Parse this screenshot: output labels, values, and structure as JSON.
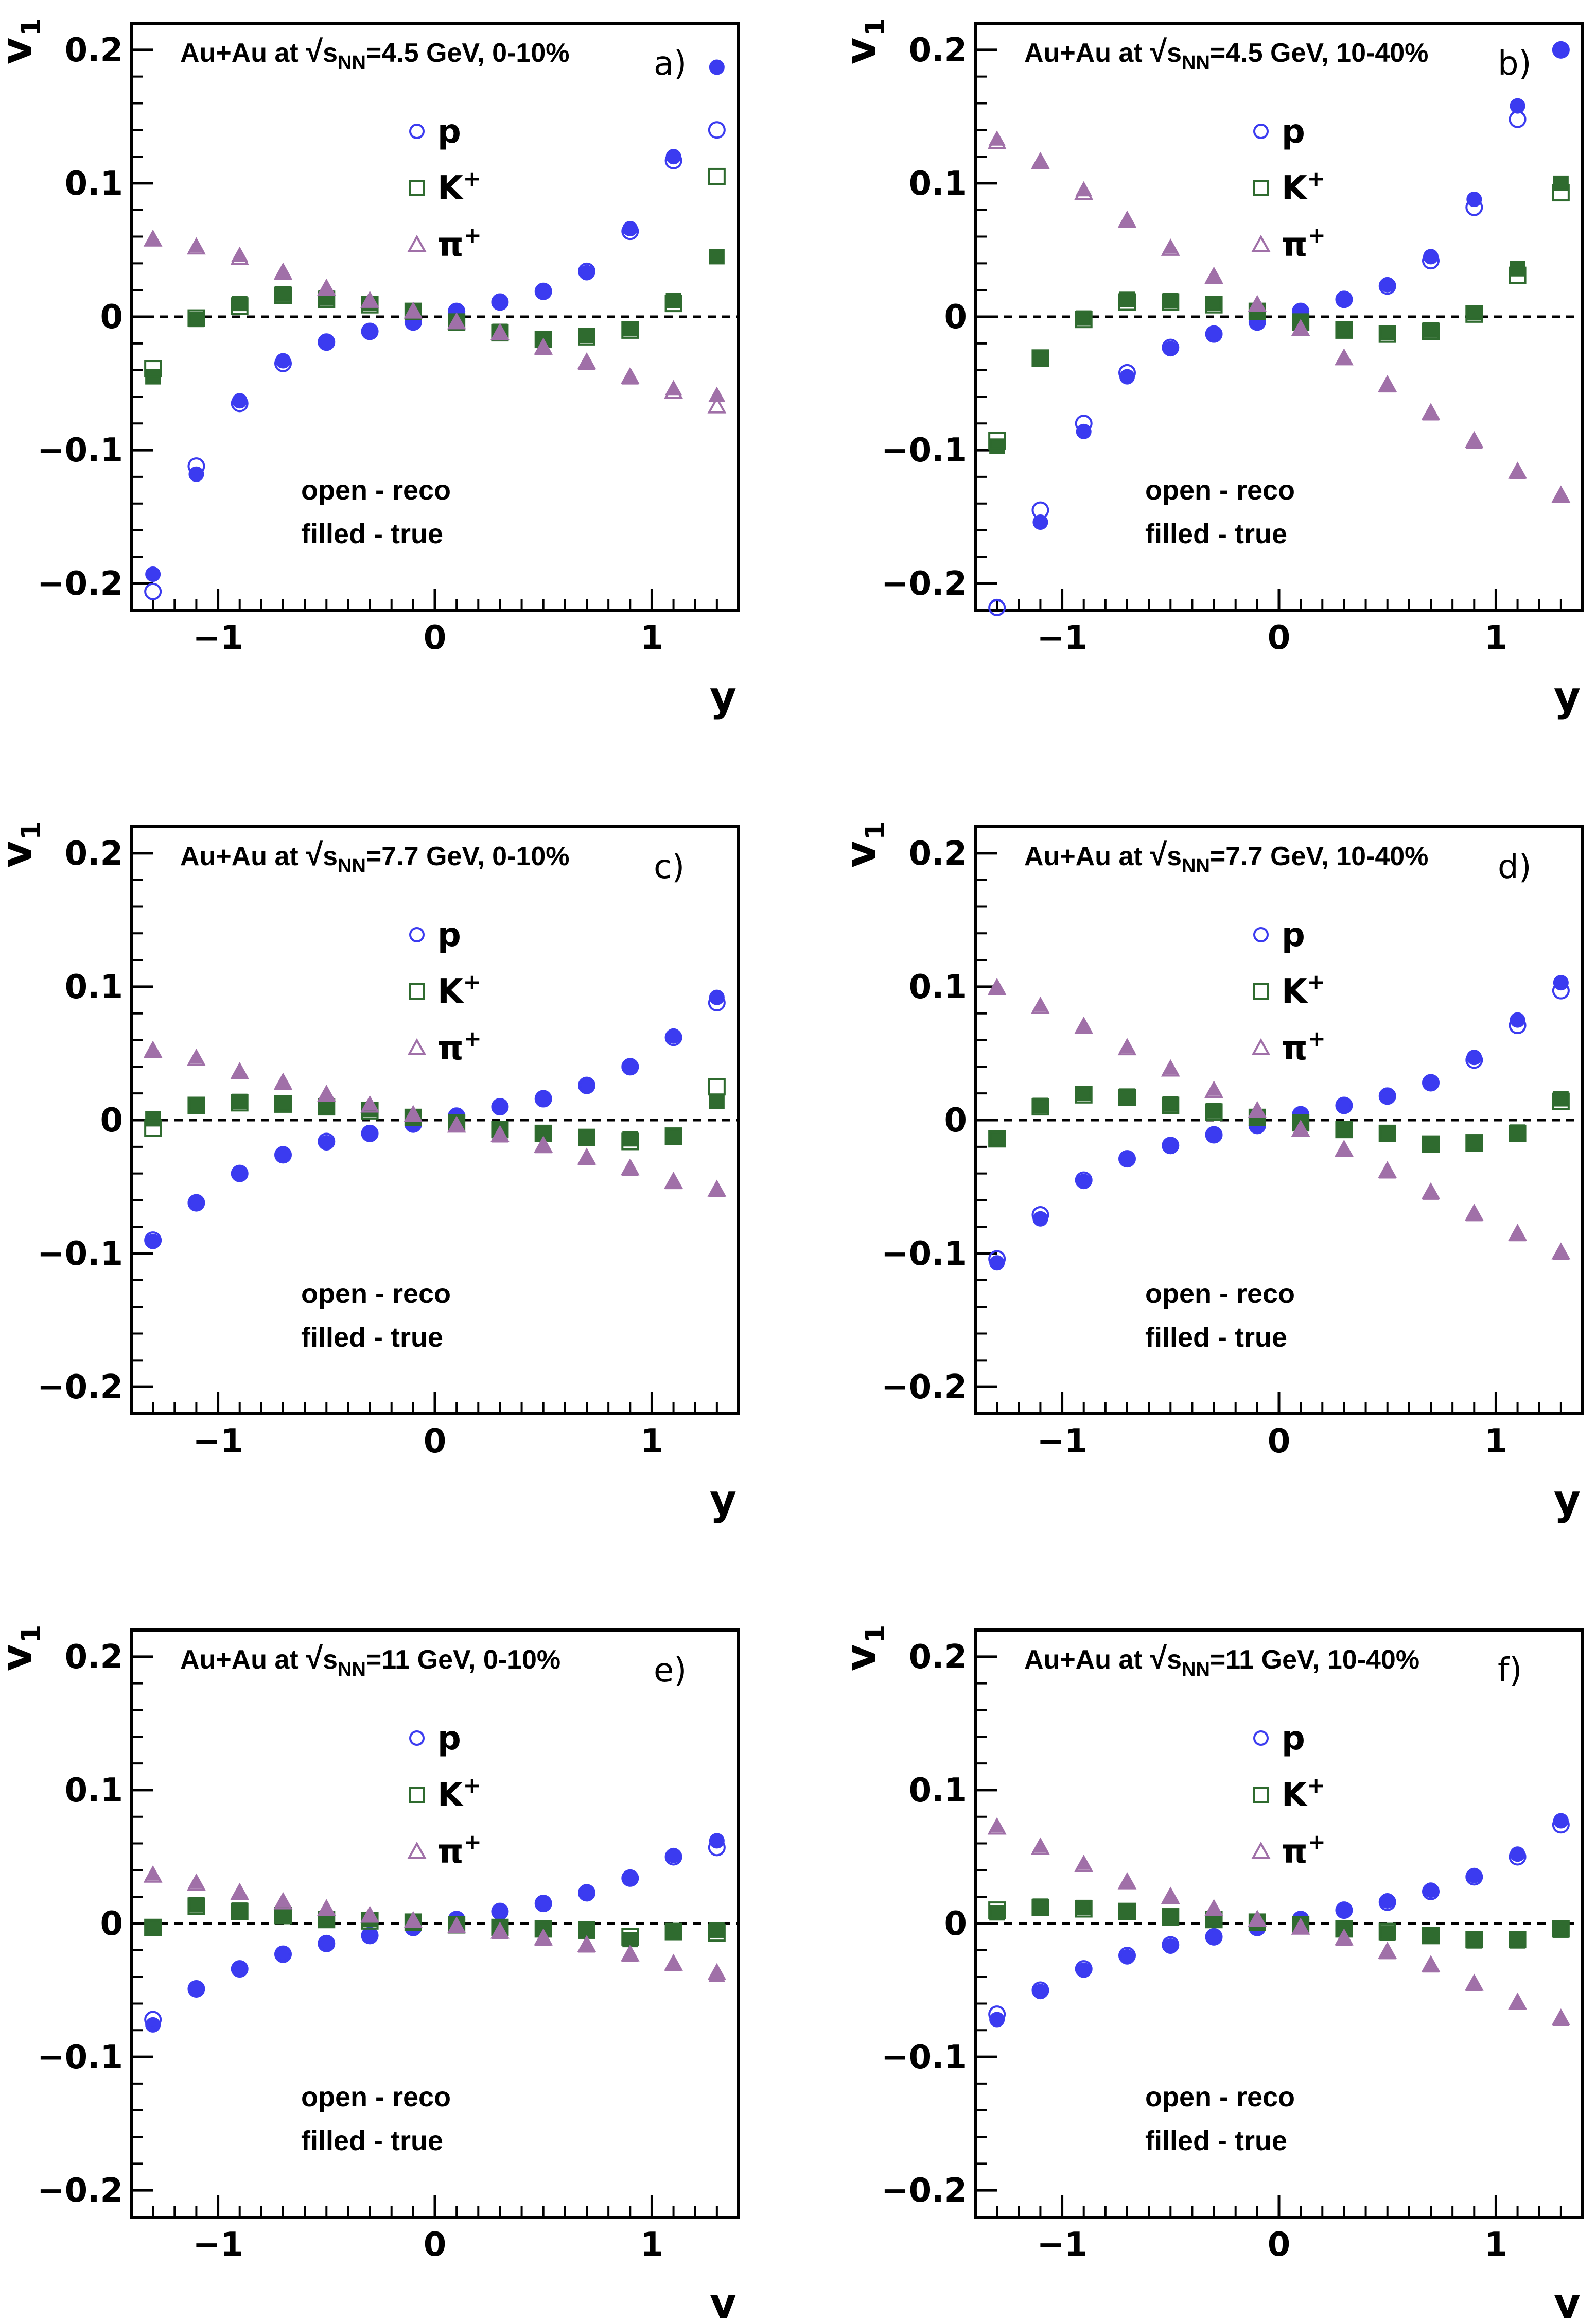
{
  "figure": {
    "xlabel": "y",
    "ylabel": "v",
    "ylabel_sub": "1",
    "xlim": [
      -1.4,
      1.4
    ],
    "ylim": [
      -0.22,
      0.22
    ],
    "x_ticks": [
      -1,
      0,
      1
    ],
    "x_tick_labels": [
      "−1",
      "0",
      "1"
    ],
    "y_ticks": [
      -0.2,
      -0.1,
      0,
      0.1,
      0.2
    ],
    "y_tick_labels": [
      "−0.2",
      "−0.1",
      "0",
      "0.1",
      "0.2"
    ],
    "title_prefix": "Au+Au at ",
    "sqrt_symbol": "√",
    "title_s": "s",
    "title_sub": "NN",
    "legend": [
      {
        "key": "p",
        "label": "p",
        "sup": "",
        "marker": "circle",
        "color": "#3b3bf0"
      },
      {
        "key": "K",
        "label": "K",
        "sup": "+",
        "marker": "square",
        "color": "#2f6b2f"
      },
      {
        "key": "pi",
        "label": "π",
        "sup": "+",
        "marker": "triangle",
        "color": "#a070a8"
      }
    ],
    "note_open": "open - reco",
    "note_filled": "filled - true",
    "colors": {
      "p": "#3b3bf0",
      "K": "#2f6b2f",
      "pi": "#a070a8"
    }
  },
  "chart_data": [
    {
      "type": "scatter",
      "panel": "a)",
      "title_rest": "=4.5 GeV, 0-10%",
      "x": [
        -1.3,
        -1.1,
        -0.9,
        -0.7,
        -0.5,
        -0.3,
        -0.1,
        0.1,
        0.3,
        0.5,
        0.7,
        0.9,
        1.1,
        1.3
      ],
      "series": [
        {
          "name": "p true",
          "particle": "p",
          "filled": true,
          "values": [
            -0.193,
            -0.118,
            -0.063,
            -0.033,
            -0.019,
            -0.011,
            -0.004,
            0.004,
            0.011,
            0.019,
            0.033,
            0.066,
            0.12,
            0.187
          ]
        },
        {
          "name": "p reco",
          "particle": "p",
          "filled": false,
          "values": [
            -0.206,
            -0.112,
            -0.065,
            -0.035,
            -0.019,
            -0.011,
            -0.004,
            0.004,
            0.011,
            0.019,
            0.034,
            0.064,
            0.117,
            0.14
          ]
        },
        {
          "name": "K+ true",
          "particle": "K",
          "filled": true,
          "values": [
            -0.045,
            -0.002,
            0.01,
            0.017,
            0.014,
            0.01,
            0.004,
            -0.004,
            -0.011,
            -0.017,
            -0.014,
            -0.009,
            0.012,
            0.045
          ]
        },
        {
          "name": "K+ reco",
          "particle": "K",
          "filled": false,
          "values": [
            -0.039,
            -0.001,
            0.008,
            0.016,
            0.013,
            0.009,
            0.004,
            -0.004,
            -0.012,
            -0.017,
            -0.015,
            -0.01,
            0.01,
            0.105
          ]
        },
        {
          "name": "pi+ true",
          "particle": "pi",
          "filled": true,
          "values": [
            0.058,
            0.053,
            0.046,
            0.034,
            0.022,
            0.012,
            0.004,
            -0.004,
            -0.013,
            -0.024,
            -0.035,
            -0.046,
            -0.054,
            -0.059
          ]
        },
        {
          "name": "pi+ reco",
          "particle": "pi",
          "filled": false,
          "values": [
            0.058,
            0.052,
            0.044,
            0.033,
            0.021,
            0.012,
            0.004,
            -0.004,
            -0.012,
            -0.023,
            -0.034,
            -0.045,
            -0.056,
            -0.067
          ]
        }
      ]
    },
    {
      "type": "scatter",
      "panel": "b)",
      "title_rest": "=4.5 GeV, 10-40%",
      "x": [
        -1.3,
        -1.1,
        -0.9,
        -0.7,
        -0.5,
        -0.3,
        -0.1,
        0.1,
        0.3,
        0.5,
        0.7,
        0.9,
        1.1,
        1.3
      ],
      "series": [
        {
          "name": "p true",
          "particle": "p",
          "filled": true,
          "values": [
            -0.222,
            -0.154,
            -0.086,
            -0.045,
            -0.024,
            -0.013,
            -0.004,
            0.004,
            0.013,
            0.024,
            0.045,
            0.088,
            0.158,
            0.2
          ]
        },
        {
          "name": "p reco",
          "particle": "p",
          "filled": false,
          "values": [
            -0.218,
            -0.145,
            -0.08,
            -0.042,
            -0.023,
            -0.013,
            -0.004,
            0.004,
            0.013,
            0.023,
            0.042,
            0.082,
            0.148,
            0.2
          ]
        },
        {
          "name": "K+ true",
          "particle": "K",
          "filled": true,
          "values": [
            -0.097,
            -0.031,
            -0.001,
            0.013,
            0.012,
            0.01,
            0.004,
            -0.004,
            -0.01,
            -0.012,
            -0.01,
            0.003,
            0.036,
            0.1
          ]
        },
        {
          "name": "K+ reco",
          "particle": "K",
          "filled": false,
          "values": [
            -0.093,
            -0.031,
            -0.002,
            0.011,
            0.011,
            0.009,
            0.004,
            -0.004,
            -0.01,
            -0.013,
            -0.011,
            0.002,
            0.031,
            0.093
          ]
        },
        {
          "name": "pi+ true",
          "particle": "pi",
          "filled": true,
          "values": [
            0.133,
            0.117,
            0.095,
            0.073,
            0.052,
            0.031,
            0.009,
            -0.009,
            -0.031,
            -0.052,
            -0.073,
            -0.094,
            -0.117,
            -0.133
          ]
        },
        {
          "name": "pi+ reco",
          "particle": "pi",
          "filled": false,
          "values": [
            0.131,
            0.116,
            0.093,
            0.072,
            0.051,
            0.03,
            0.009,
            -0.009,
            -0.031,
            -0.051,
            -0.072,
            -0.093,
            -0.116,
            -0.134
          ]
        }
      ]
    },
    {
      "type": "scatter",
      "panel": "c)",
      "title_rest": "=7.7 GeV, 0-10%",
      "x": [
        -1.3,
        -1.1,
        -0.9,
        -0.7,
        -0.5,
        -0.3,
        -0.1,
        0.1,
        0.3,
        0.5,
        0.7,
        0.9,
        1.1,
        1.3
      ],
      "series": [
        {
          "name": "p true",
          "particle": "p",
          "filled": true,
          "values": [
            -0.091,
            -0.062,
            -0.04,
            -0.026,
            -0.017,
            -0.01,
            -0.003,
            0.003,
            0.01,
            0.016,
            0.026,
            0.04,
            0.063,
            0.092
          ]
        },
        {
          "name": "p reco",
          "particle": "p",
          "filled": false,
          "values": [
            -0.09,
            -0.062,
            -0.04,
            -0.026,
            -0.016,
            -0.01,
            -0.003,
            0.003,
            0.01,
            0.016,
            0.026,
            0.04,
            0.062,
            0.088
          ]
        },
        {
          "name": "K+ true",
          "particle": "K",
          "filled": true,
          "values": [
            0.001,
            0.011,
            0.014,
            0.012,
            0.01,
            0.008,
            0.002,
            -0.002,
            -0.008,
            -0.01,
            -0.013,
            -0.014,
            -0.012,
            0.014
          ]
        },
        {
          "name": "K+ reco",
          "particle": "K",
          "filled": false,
          "values": [
            -0.006,
            0.011,
            0.013,
            0.012,
            0.01,
            0.007,
            0.002,
            -0.002,
            -0.007,
            -0.01,
            -0.013,
            -0.016,
            -0.012,
            0.025
          ]
        },
        {
          "name": "pi+ true",
          "particle": "pi",
          "filled": true,
          "values": [
            0.053,
            0.047,
            0.037,
            0.029,
            0.02,
            0.012,
            0.004,
            -0.004,
            -0.012,
            -0.02,
            -0.029,
            -0.037,
            -0.047,
            -0.053
          ]
        },
        {
          "name": "pi+ reco",
          "particle": "pi",
          "filled": false,
          "values": [
            0.052,
            0.046,
            0.036,
            0.028,
            0.019,
            0.011,
            0.004,
            -0.004,
            -0.011,
            -0.019,
            -0.028,
            -0.036,
            -0.046,
            -0.052
          ]
        }
      ]
    },
    {
      "type": "scatter",
      "panel": "d)",
      "title_rest": "=7.7 GeV, 10-40%",
      "x": [
        -1.3,
        -1.1,
        -0.9,
        -0.7,
        -0.5,
        -0.3,
        -0.1,
        0.1,
        0.3,
        0.5,
        0.7,
        0.9,
        1.1,
        1.3
      ],
      "series": [
        {
          "name": "p true",
          "particle": "p",
          "filled": true,
          "values": [
            -0.107,
            -0.074,
            -0.046,
            -0.029,
            -0.019,
            -0.011,
            -0.004,
            0.004,
            0.011,
            0.018,
            0.028,
            0.047,
            0.075,
            0.103
          ]
        },
        {
          "name": "p reco",
          "particle": "p",
          "filled": false,
          "values": [
            -0.104,
            -0.071,
            -0.045,
            -0.029,
            -0.019,
            -0.011,
            -0.004,
            0.004,
            0.011,
            0.018,
            0.028,
            0.045,
            0.071,
            0.097
          ]
        },
        {
          "name": "K+ true",
          "particle": "K",
          "filled": true,
          "values": [
            -0.014,
            0.011,
            0.02,
            0.018,
            0.012,
            0.007,
            0.002,
            -0.002,
            -0.007,
            -0.01,
            -0.018,
            -0.017,
            -0.009,
            0.016
          ]
        },
        {
          "name": "K+ reco",
          "particle": "K",
          "filled": false,
          "values": [
            -0.014,
            0.01,
            0.019,
            0.017,
            0.011,
            0.006,
            0.002,
            -0.002,
            -0.007,
            -0.01,
            -0.018,
            -0.017,
            -0.01,
            0.014
          ]
        },
        {
          "name": "pi+ true",
          "particle": "pi",
          "filled": true,
          "values": [
            0.1,
            0.086,
            0.071,
            0.055,
            0.039,
            0.023,
            0.007,
            -0.007,
            -0.023,
            -0.039,
            -0.055,
            -0.071,
            -0.086,
            -0.1
          ]
        },
        {
          "name": "pi+ reco",
          "particle": "pi",
          "filled": false,
          "values": [
            0.099,
            0.085,
            0.07,
            0.054,
            0.038,
            0.022,
            0.007,
            -0.007,
            -0.022,
            -0.038,
            -0.054,
            -0.07,
            -0.085,
            -0.099
          ]
        }
      ]
    },
    {
      "type": "scatter",
      "panel": "e)",
      "title_rest": "=11 GeV, 0-10%",
      "x": [
        -1.3,
        -1.1,
        -0.9,
        -0.7,
        -0.5,
        -0.3,
        -0.1,
        0.1,
        0.3,
        0.5,
        0.7,
        0.9,
        1.1,
        1.3
      ],
      "series": [
        {
          "name": "p true",
          "particle": "p",
          "filled": true,
          "values": [
            -0.076,
            -0.049,
            -0.034,
            -0.023,
            -0.015,
            -0.009,
            -0.003,
            0.003,
            0.009,
            0.015,
            0.023,
            0.034,
            0.051,
            0.062
          ]
        },
        {
          "name": "p reco",
          "particle": "p",
          "filled": false,
          "values": [
            -0.072,
            -0.049,
            -0.034,
            -0.023,
            -0.015,
            -0.009,
            -0.003,
            0.003,
            0.009,
            0.015,
            0.023,
            0.034,
            0.05,
            0.057
          ]
        },
        {
          "name": "K+ true",
          "particle": "K",
          "filled": true,
          "values": [
            -0.003,
            0.014,
            0.01,
            0.006,
            0.003,
            0.003,
            0.001,
            -0.001,
            -0.003,
            -0.004,
            -0.005,
            -0.012,
            -0.006,
            -0.005
          ]
        },
        {
          "name": "K+ reco",
          "particle": "K",
          "filled": false,
          "values": [
            -0.003,
            0.013,
            0.009,
            0.006,
            0.003,
            0.002,
            0.001,
            -0.001,
            -0.003,
            -0.004,
            -0.005,
            -0.01,
            -0.006,
            -0.007
          ]
        },
        {
          "name": "pi+ true",
          "particle": "pi",
          "filled": true,
          "values": [
            0.037,
            0.031,
            0.024,
            0.017,
            0.011,
            0.006,
            0.002,
            -0.002,
            -0.007,
            -0.012,
            -0.017,
            -0.024,
            -0.031,
            -0.039
          ]
        },
        {
          "name": "pi+ reco",
          "particle": "pi",
          "filled": false,
          "values": [
            0.036,
            0.03,
            0.023,
            0.016,
            0.011,
            0.006,
            0.002,
            -0.002,
            -0.006,
            -0.011,
            -0.016,
            -0.023,
            -0.03,
            -0.037
          ]
        }
      ]
    },
    {
      "type": "scatter",
      "panel": "f)",
      "title_rest": "=11 GeV, 10-40%",
      "x": [
        -1.3,
        -1.1,
        -0.9,
        -0.7,
        -0.5,
        -0.3,
        -0.1,
        0.1,
        0.3,
        0.5,
        0.7,
        0.9,
        1.1,
        1.3
      ],
      "series": [
        {
          "name": "p true",
          "particle": "p",
          "filled": true,
          "values": [
            -0.072,
            -0.051,
            -0.035,
            -0.025,
            -0.017,
            -0.01,
            -0.003,
            0.003,
            0.01,
            0.017,
            0.025,
            0.036,
            0.052,
            0.077
          ]
        },
        {
          "name": "p reco",
          "particle": "p",
          "filled": false,
          "values": [
            -0.068,
            -0.05,
            -0.034,
            -0.024,
            -0.016,
            -0.01,
            -0.003,
            0.003,
            0.01,
            0.016,
            0.024,
            0.035,
            0.05,
            0.074
          ]
        },
        {
          "name": "K+ true",
          "particle": "K",
          "filled": true,
          "values": [
            0.008,
            0.013,
            0.012,
            0.009,
            0.005,
            0.003,
            0.001,
            -0.001,
            -0.004,
            -0.007,
            -0.009,
            -0.013,
            -0.013,
            -0.005
          ]
        },
        {
          "name": "K+ reco",
          "particle": "K",
          "filled": false,
          "values": [
            0.01,
            0.012,
            0.011,
            0.009,
            0.005,
            0.003,
            0.001,
            -0.001,
            -0.004,
            -0.006,
            -0.009,
            -0.012,
            -0.012,
            -0.004
          ]
        },
        {
          "name": "pi+ true",
          "particle": "pi",
          "filled": true,
          "values": [
            0.073,
            0.058,
            0.045,
            0.032,
            0.021,
            0.011,
            0.003,
            -0.003,
            -0.012,
            -0.022,
            -0.032,
            -0.046,
            -0.06,
            -0.072
          ]
        },
        {
          "name": "pi+ reco",
          "particle": "pi",
          "filled": false,
          "values": [
            0.072,
            0.057,
            0.044,
            0.031,
            0.02,
            0.011,
            0.003,
            -0.003,
            -0.011,
            -0.021,
            -0.031,
            -0.045,
            -0.059,
            -0.071
          ]
        }
      ]
    }
  ]
}
